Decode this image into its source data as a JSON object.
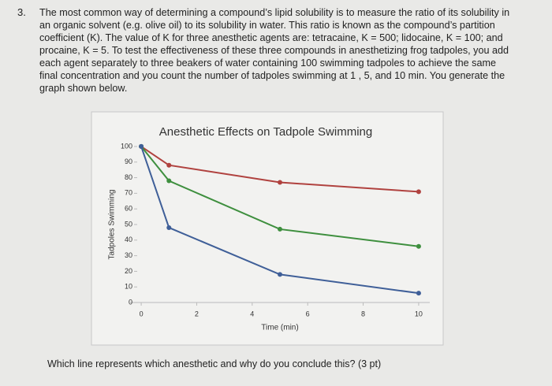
{
  "question": {
    "number": "3.",
    "text": "The most common way of determining a compound’s lipid solubility is to measure the ratio of its solubility in an organic solvent (e.g. olive oil) to its solubility in water. This ratio is known as the compound’s partition coefficient (K). The value of K for three anesthetic agents are: tetracaine, K = 500; lidocaine, K = 100; and procaine, K = 5. To test the effectiveness of these three compounds in anesthetizing frog tadpoles, you add each agent separately to three beakers of water containing 100 swimming tadpoles to achieve the same final concentration and you count the number of tadpoles swimming at 1 , 5, and 10 min. You generate the graph shown below.",
    "prompt": "Which line represents which anesthetic and why do you conclude this? (3 pt)"
  },
  "chart_data": {
    "type": "line",
    "title": "Anesthetic Effects on Tadpole Swimming",
    "x_label": "Time (min)",
    "y_label": "Tadpoles Swimming",
    "x": [
      0,
      1,
      5,
      10
    ],
    "series": [
      {
        "color": "#b0423f",
        "values": [
          100,
          88,
          77,
          71
        ]
      },
      {
        "color": "#3e8f3e",
        "values": [
          100,
          78,
          47,
          36
        ]
      },
      {
        "color": "#3f5f98",
        "values": [
          100,
          48,
          18,
          6
        ]
      }
    ],
    "xlim": [
      -0.4,
      10.4
    ],
    "xticks": [
      0,
      2,
      4,
      6,
      8,
      10
    ],
    "ylim": [
      -3,
      104
    ],
    "yticks": [
      0,
      10,
      20,
      30,
      40,
      50,
      60,
      70,
      80,
      90,
      100
    ]
  }
}
